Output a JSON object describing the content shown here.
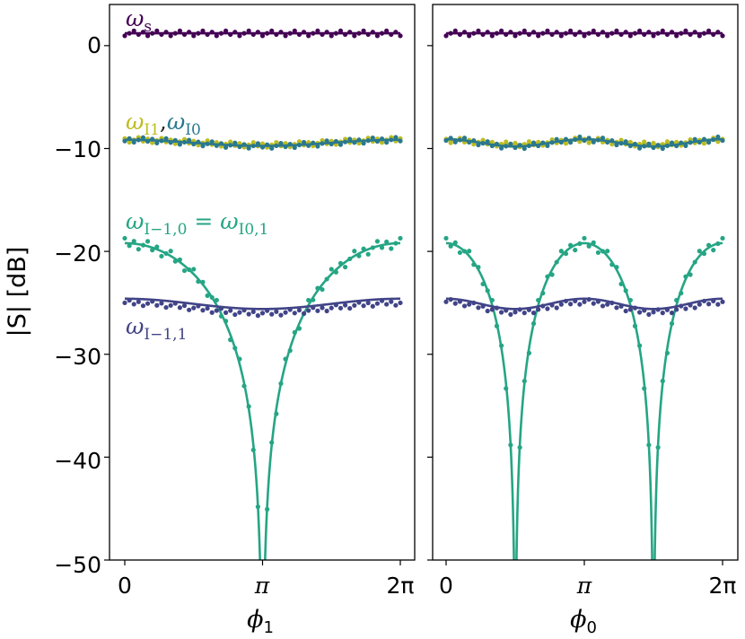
{
  "chart_data": {
    "type": "line",
    "ylabel": "|S| [dB]",
    "ylim": [
      -50,
      4
    ],
    "yticks": [
      0,
      -10,
      -20,
      -30,
      -40,
      -50
    ],
    "ytick_labels": [
      "0",
      "−10",
      "−20",
      "−30",
      "−40",
      "−50"
    ],
    "xtick_labels": [
      "0",
      "π",
      "2π"
    ],
    "xlim_note": "0 to 2π radians",
    "annotations": {
      "ws": {
        "base": "ω",
        "sub": "s",
        "color": "#440154"
      },
      "wI1": {
        "base": "ω",
        "sub": "I1",
        "color": "#bcbd22"
      },
      "comma": {
        "text": ",",
        "color": "#222222"
      },
      "wI0": {
        "base": "ω",
        "sub": "I0",
        "color": "#2a788e"
      },
      "wI10": {
        "base": "ω",
        "sub": "I−1,0",
        "eq": " = ",
        "base2": "ω",
        "sub2": "I0,1",
        "color": "#25a584"
      },
      "wI11": {
        "base": "ω",
        "sub": "I−1,1",
        "color": "#414487"
      }
    },
    "panels": [
      {
        "name": "left",
        "xlabel_base": "ϕ",
        "xlabel_sub": "1",
        "series": [
          {
            "name": "ω_s",
            "color": "#440154",
            "model": "const",
            "level": 1.2,
            "amp": 0,
            "harm": 1,
            "phase": 0,
            "dots": true,
            "line": true
          },
          {
            "name": "ω_I1",
            "color": "#bcbd22",
            "model": "cos",
            "level": -9.4,
            "amp": 0.25,
            "harm": 1,
            "phase": 0,
            "dots": true,
            "line": true
          },
          {
            "name": "ω_I0",
            "color": "#2a788e",
            "model": "cos",
            "level": -9.45,
            "amp": 0.3,
            "harm": 1,
            "phase": 0,
            "dots": true,
            "line": true
          },
          {
            "name": "ω_I−1,0 = ω_I0,1",
            "color": "#25a584",
            "model": "abscos",
            "level": -19.2,
            "amp": 0,
            "harm": 1,
            "phase": 0,
            "dots": true,
            "line": true
          },
          {
            "name": "ω_I−1,1",
            "color": "#414487",
            "model": "cos",
            "level": -25.1,
            "amp": 0.5,
            "harm": 1,
            "phase": 0,
            "dots": true,
            "line": true,
            "dot_offset": -0.4
          }
        ]
      },
      {
        "name": "right",
        "xlabel_base": "ϕ",
        "xlabel_sub": "0",
        "series": [
          {
            "name": "ω_s",
            "color": "#440154",
            "model": "const",
            "level": 1.2,
            "amp": 0,
            "harm": 1,
            "phase": 0,
            "dots": true,
            "line": true
          },
          {
            "name": "ω_I1",
            "color": "#bcbd22",
            "model": "cos",
            "level": -9.4,
            "amp": 0.2,
            "harm": 2,
            "phase": 0,
            "dots": true,
            "line": true
          },
          {
            "name": "ω_I0",
            "color": "#2a788e",
            "model": "cos",
            "level": -9.45,
            "amp": 0.35,
            "harm": 2,
            "phase": 0,
            "dots": true,
            "line": true
          },
          {
            "name": "ω_I−1,0 = ω_I0,1",
            "color": "#25a584",
            "model": "abscos",
            "level": -19.2,
            "amp": 0,
            "harm": 2,
            "phase": 0,
            "dots": true,
            "line": true
          },
          {
            "name": "ω_I−1,1",
            "color": "#414487",
            "model": "cos",
            "level": -25.1,
            "amp": 0.5,
            "harm": 2,
            "phase": 0,
            "dots": true,
            "line": true,
            "dot_offset": -0.3
          }
        ]
      }
    ]
  }
}
